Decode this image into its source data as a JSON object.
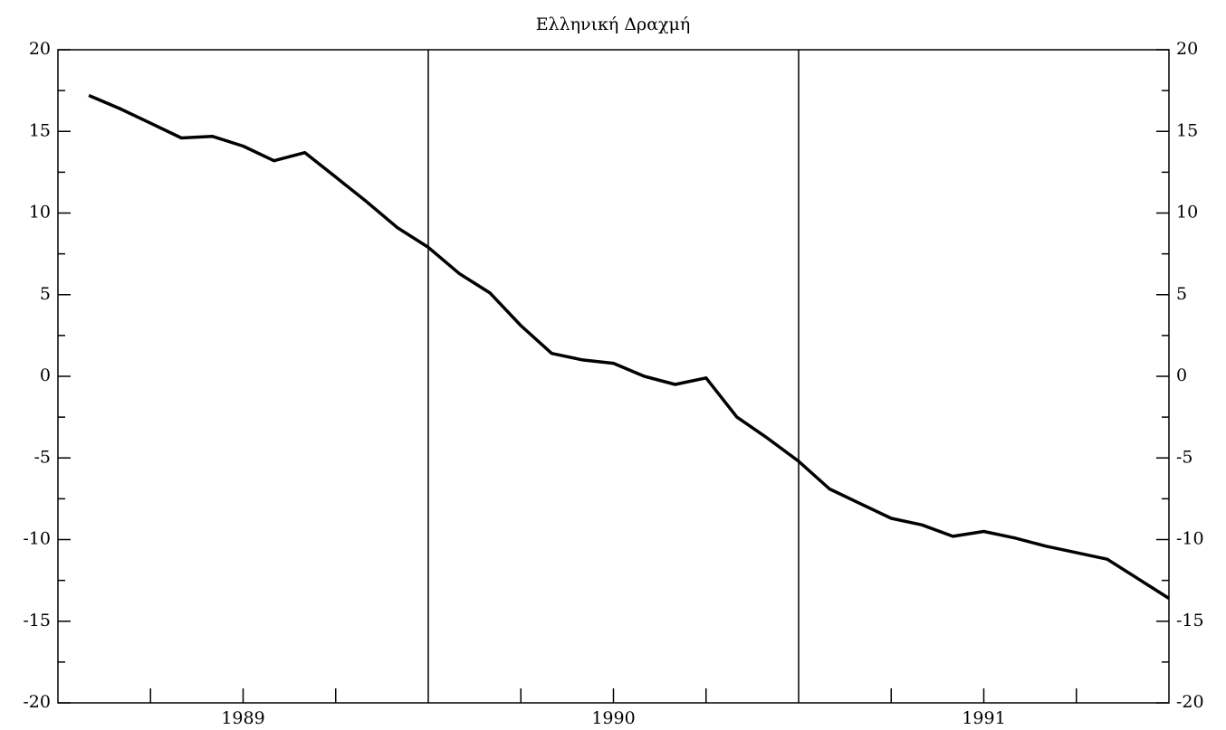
{
  "chart_data": {
    "type": "line",
    "title": "Ελληνική Δραχμή",
    "categories": [
      null,
      null,
      null,
      null,
      null,
      null,
      "1989",
      null,
      null,
      null,
      null,
      null,
      null,
      null,
      null,
      null,
      null,
      null,
      "1990",
      null,
      null,
      null,
      null,
      null,
      null,
      null,
      null,
      null,
      null,
      null,
      "1991",
      null,
      null,
      null,
      null,
      null
    ],
    "values": [
      17.2,
      16.4,
      15.5,
      14.6,
      14.7,
      14.1,
      13.2,
      13.7,
      12.2,
      10.7,
      9.1,
      7.9,
      6.3,
      5.1,
      3.1,
      1.4,
      1.0,
      0.8,
      0.0,
      -0.5,
      -0.1,
      -2.5,
      -3.8,
      -5.2,
      -6.9,
      -7.8,
      -8.7,
      -9.1,
      -9.8,
      -9.5,
      -9.9,
      -10.4,
      -10.8,
      -11.2,
      -12.4,
      -13.6
    ],
    "color": "#000000",
    "ylim": [
      -20,
      20
    ],
    "yticks": [
      -20,
      -15,
      -10,
      -5,
      0,
      5,
      10,
      15,
      20
    ]
  }
}
